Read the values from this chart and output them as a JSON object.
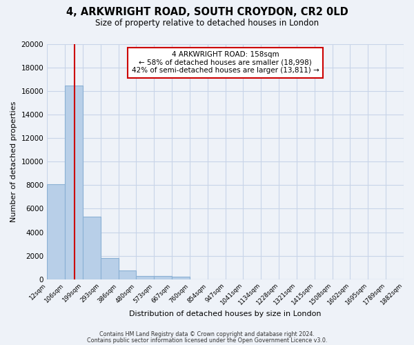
{
  "title": "4, ARKWRIGHT ROAD, SOUTH CROYDON, CR2 0LD",
  "subtitle": "Size of property relative to detached houses in London",
  "xlabel": "Distribution of detached houses by size in London",
  "ylabel": "Number of detached properties",
  "bar_values": [
    8100,
    16500,
    5300,
    1800,
    750,
    300,
    250,
    200,
    0,
    0,
    0,
    0,
    0,
    0,
    0,
    0,
    0,
    0,
    0,
    0
  ],
  "bin_labels": [
    "12sqm",
    "106sqm",
    "199sqm",
    "293sqm",
    "386sqm",
    "480sqm",
    "573sqm",
    "667sqm",
    "760sqm",
    "854sqm",
    "947sqm",
    "1041sqm",
    "1134sqm",
    "1228sqm",
    "1321sqm",
    "1415sqm",
    "1508sqm",
    "1602sqm",
    "1695sqm",
    "1789sqm",
    "1882sqm"
  ],
  "bar_color": "#b8cfe8",
  "bar_edgecolor": "#8ab0d4",
  "property_line_color": "#cc0000",
  "annotation_title": "4 ARKWRIGHT ROAD: 158sqm",
  "annotation_line1": "← 58% of detached houses are smaller (18,998)",
  "annotation_line2": "42% of semi-detached houses are larger (13,811) →",
  "annotation_box_color": "#ffffff",
  "annotation_box_edgecolor": "#cc0000",
  "ylim": [
    0,
    20000
  ],
  "yticks": [
    0,
    2000,
    4000,
    6000,
    8000,
    10000,
    12000,
    14000,
    16000,
    18000,
    20000
  ],
  "footer1": "Contains HM Land Registry data © Crown copyright and database right 2024.",
  "footer2": "Contains public sector information licensed under the Open Government Licence v3.0.",
  "background_color": "#eef2f8",
  "grid_color": "#c8d4e8"
}
